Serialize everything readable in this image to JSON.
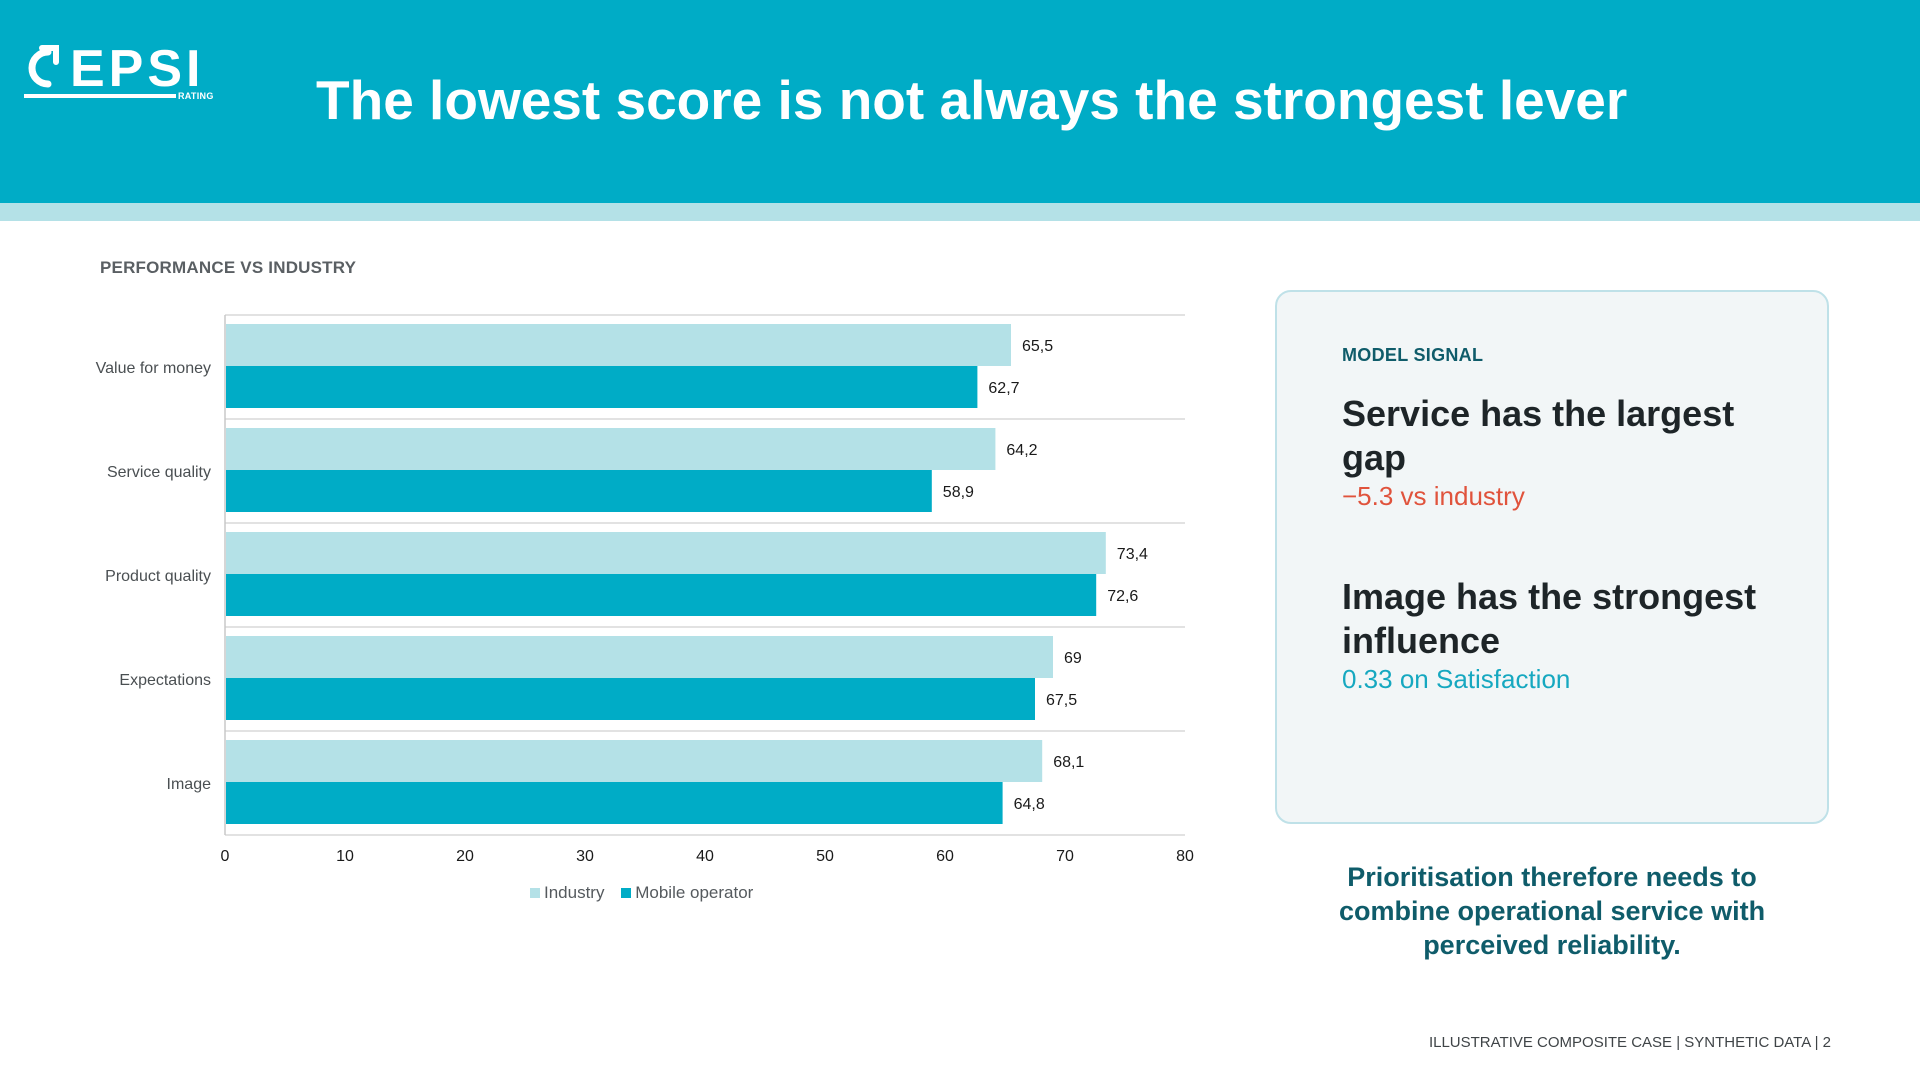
{
  "header": {
    "logo_text": "EPSI",
    "logo_subtext": "RATING",
    "title": "The lowest score is not always the strongest lever"
  },
  "chart_section_title": "PERFORMANCE VS INDUSTRY",
  "colors": {
    "header": "#00acc6",
    "industry": "#b4e1e7",
    "mobile_operator": "#00acc6",
    "negative": "#e0533c",
    "accent_text": "#16a8c0",
    "dark_teal": "#0f5c6a"
  },
  "chart_data": {
    "type": "bar",
    "orientation": "horizontal",
    "categories": [
      "Value for money",
      "Service quality",
      "Product quality",
      "Expectations",
      "Image"
    ],
    "series": [
      {
        "name": "Industry",
        "values": [
          65.5,
          64.2,
          73.4,
          69,
          68.1
        ],
        "labels": [
          "65,5",
          "64,2",
          "73,4",
          "69",
          "68,1"
        ]
      },
      {
        "name": "Mobile operator",
        "values": [
          62.7,
          58.9,
          72.6,
          67.5,
          64.8
        ],
        "labels": [
          "62,7",
          "58,9",
          "72,6",
          "67,5",
          "64,8"
        ]
      }
    ],
    "xlim": [
      0,
      80
    ],
    "xticks": [
      0,
      10,
      20,
      30,
      40,
      50,
      60,
      70,
      80
    ],
    "title": "",
    "xlabel": "",
    "ylabel": "",
    "grid": "horizontal separators between categories",
    "legend": "bottom"
  },
  "panel": {
    "kicker": "MODEL SIGNAL",
    "heading1": "Service has the largest gap",
    "sub1": "−5.3 vs industry",
    "heading2": "Image has the strongest influence",
    "sub2": "0.33 on Satisfaction"
  },
  "conclusion": "Prioritisation therefore needs to combine operational service with perceived reliability.",
  "footer": "ILLUSTRATIVE COMPOSITE CASE | SYNTHETIC DATA | 2"
}
